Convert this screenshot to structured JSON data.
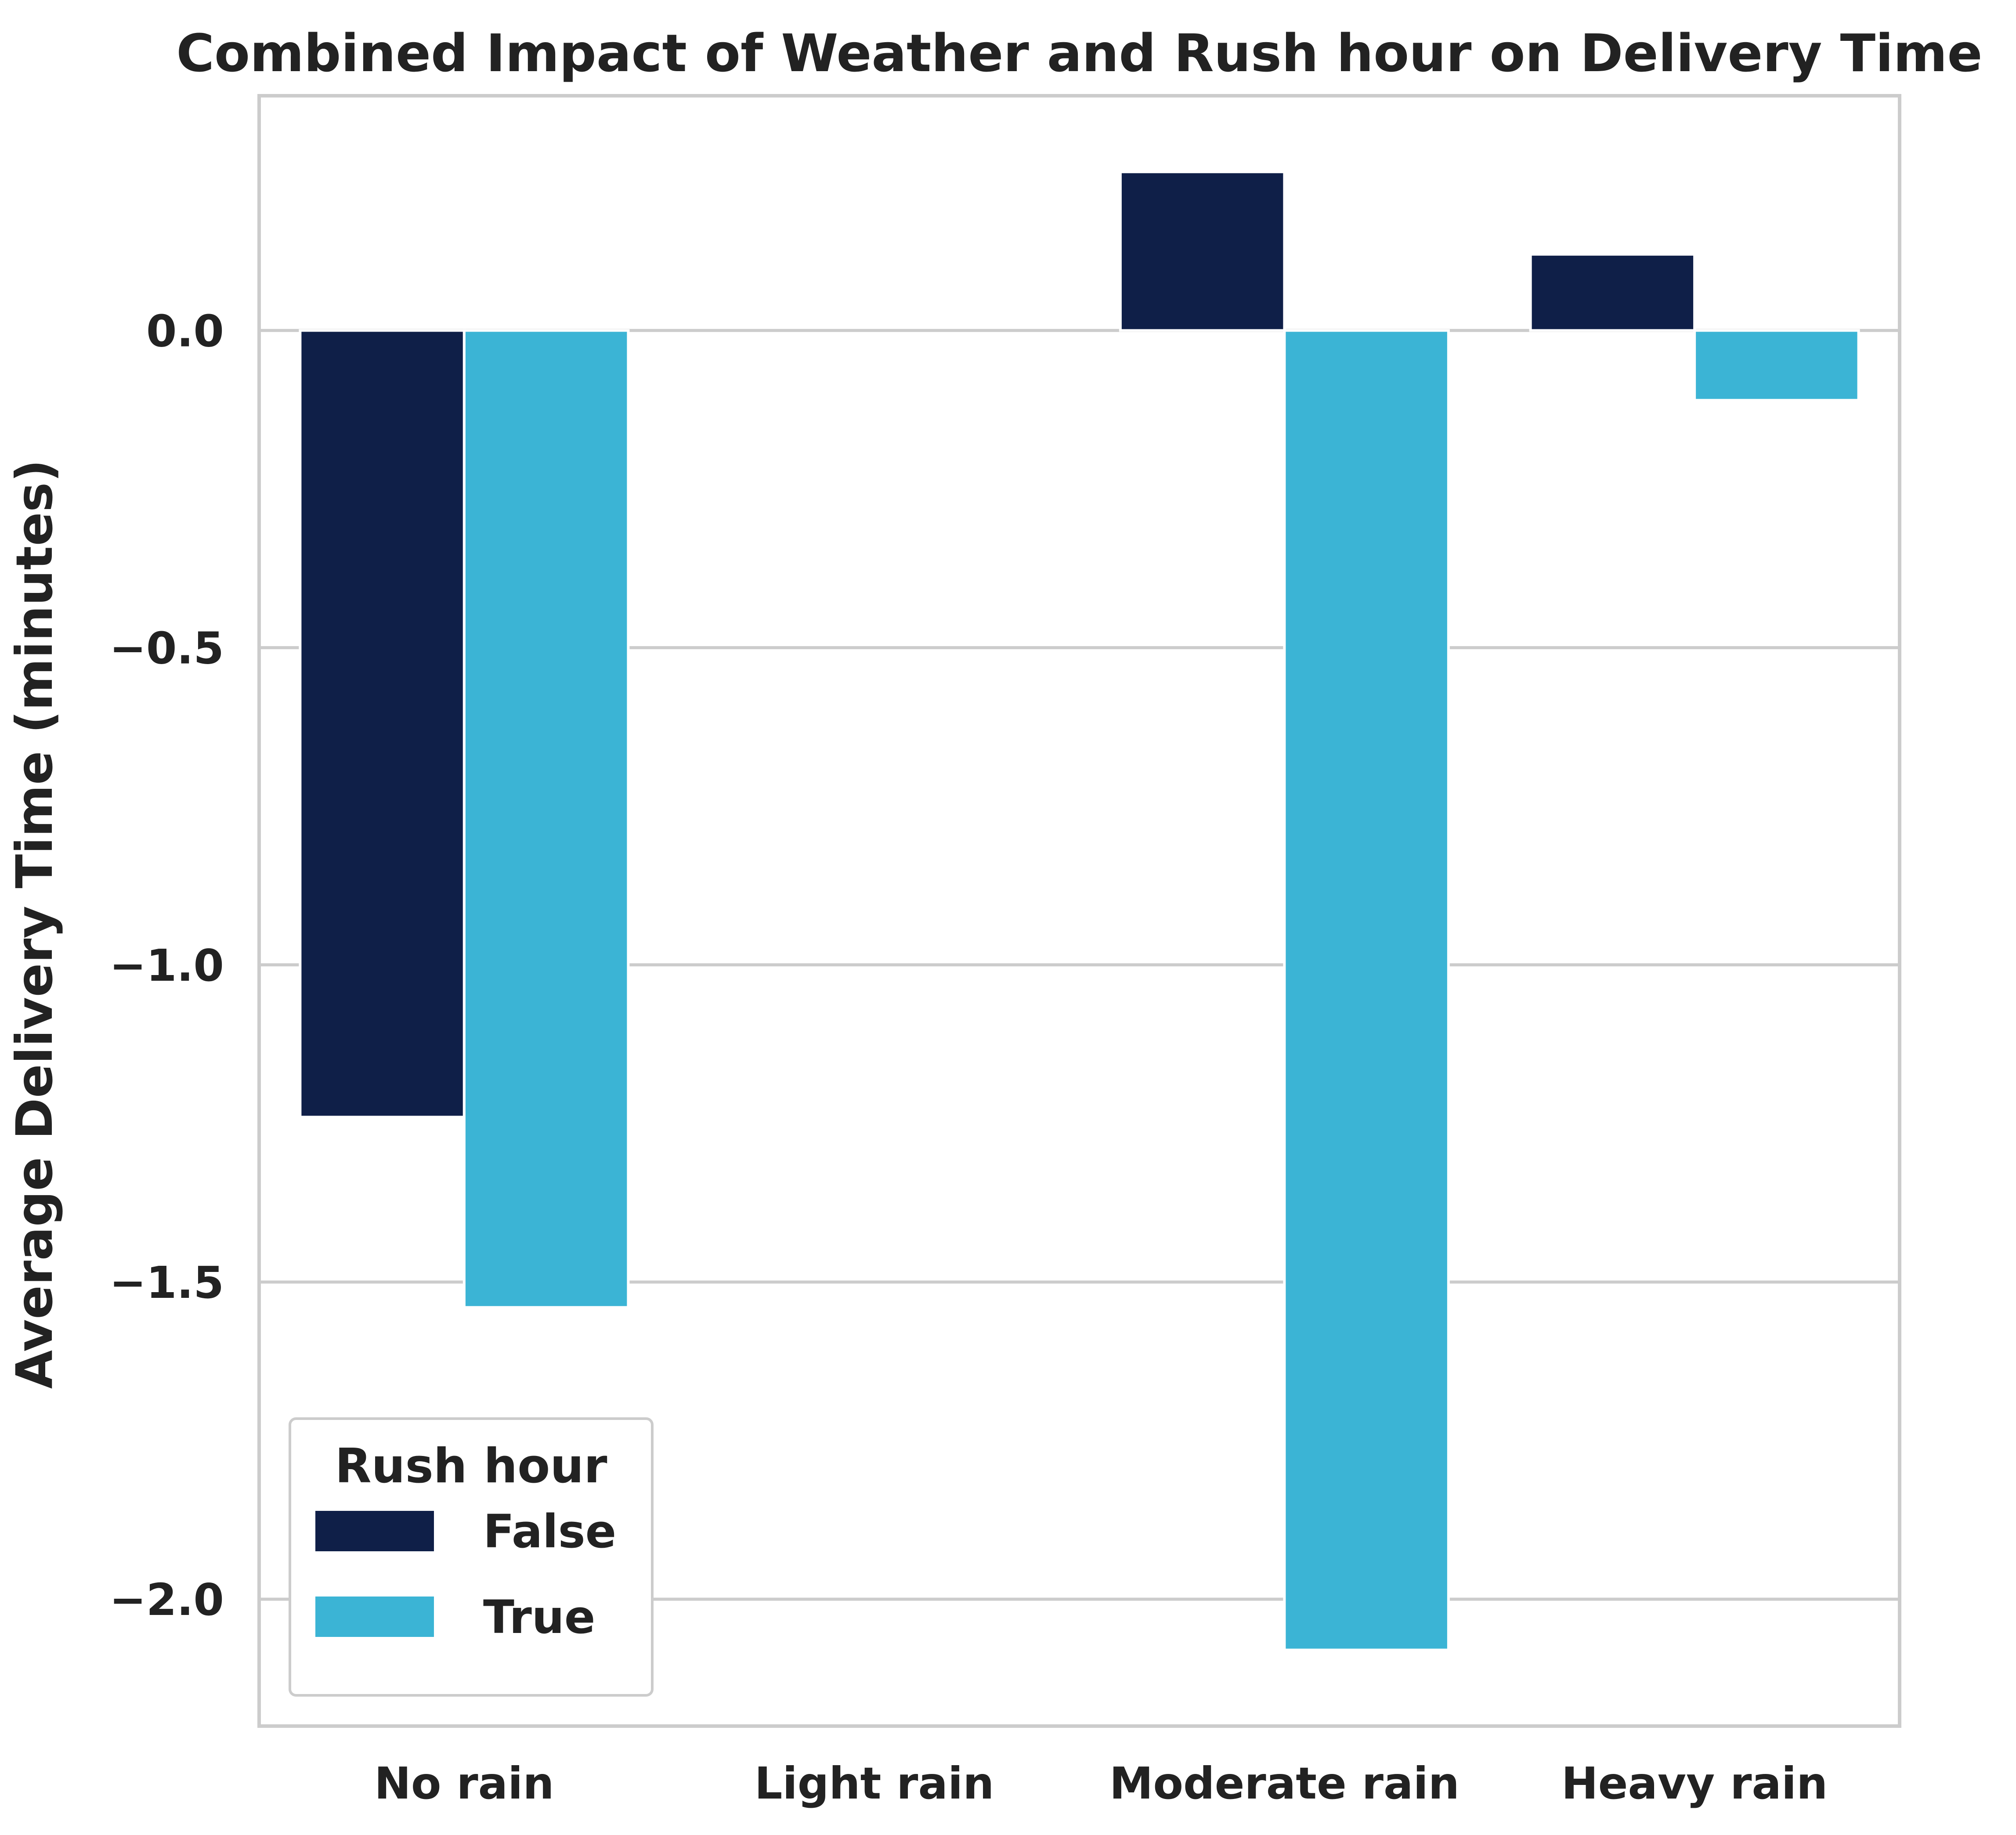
{
  "chart_data": {
    "type": "bar",
    "title": "Combined Impact of Weather and Rush hour on Delivery Time",
    "xlabel": "",
    "ylabel": "Average Delivery Time (minutes)",
    "categories": [
      "No rain",
      "Light rain",
      "Moderate rain",
      "Heavy rain"
    ],
    "series": [
      {
        "name": "False",
        "color": "#0f1f48",
        "values": [
          -1.24,
          null,
          0.25,
          0.12
        ]
      },
      {
        "name": "True",
        "color": "#3bb4d5",
        "values": [
          -1.54,
          null,
          -2.08,
          -0.11
        ]
      }
    ],
    "ylim": [
      -2.2,
      0.37
    ],
    "yticks": [
      0.0,
      -0.5,
      -1.0,
      -1.5,
      -2.0
    ],
    "ytick_labels": [
      "0.0",
      "−0.5",
      "−1.0",
      "−1.5",
      "−2.0"
    ],
    "grid": "horizontal",
    "legend": {
      "title": "Rush hour",
      "position": "lower-left",
      "entries": [
        "False",
        "True"
      ]
    }
  }
}
